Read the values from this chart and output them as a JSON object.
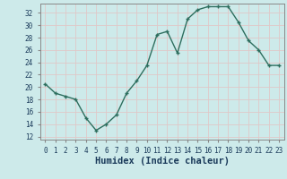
{
  "x": [
    0,
    1,
    2,
    3,
    4,
    5,
    6,
    7,
    8,
    9,
    10,
    11,
    12,
    13,
    14,
    15,
    16,
    17,
    18,
    19,
    20,
    21,
    22,
    23
  ],
  "y": [
    20.5,
    19.0,
    18.5,
    18.0,
    15.0,
    13.0,
    14.0,
    15.5,
    19.0,
    21.0,
    23.5,
    28.5,
    29.0,
    25.5,
    31.0,
    32.5,
    33.0,
    33.0,
    33.0,
    30.5,
    27.5,
    26.0,
    23.5,
    23.5
  ],
  "xlabel": "Humidex (Indice chaleur)",
  "xlim": [
    -0.5,
    23.5
  ],
  "ylim": [
    11.5,
    33.5
  ],
  "yticks": [
    12,
    14,
    16,
    18,
    20,
    22,
    24,
    26,
    28,
    30,
    32
  ],
  "xticks": [
    0,
    1,
    2,
    3,
    4,
    5,
    6,
    7,
    8,
    9,
    10,
    11,
    12,
    13,
    14,
    15,
    16,
    17,
    18,
    19,
    20,
    21,
    22,
    23
  ],
  "line_color": "#2d6e5e",
  "bg_color": "#cdeaea",
  "grid_color": "#b8d8d8",
  "spine_color": "#888888",
  "tick_label_color": "#1a3a5a",
  "xlabel_color": "#1a3a5a",
  "tick_fontsize": 5.5,
  "xlabel_fontsize": 7.5
}
